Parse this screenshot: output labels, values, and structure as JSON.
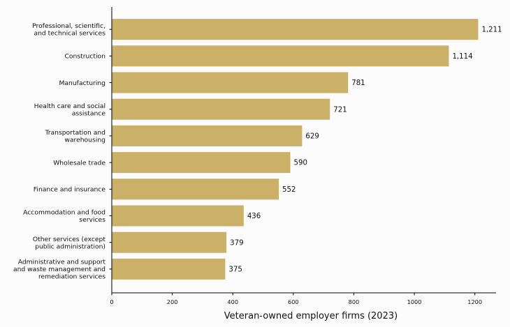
{
  "chart_data": {
    "type": "bar",
    "orientation": "horizontal",
    "xlabel": "Veteran-owned employer firms (2023)",
    "ylabel": "",
    "title": "",
    "xlim": [
      0,
      1270
    ],
    "xticks": [
      "0",
      "200",
      "400",
      "600",
      "800",
      "1000",
      "1200"
    ],
    "categories": [
      [
        "Professional, scientific,",
        "and technical services"
      ],
      [
        "Construction"
      ],
      [
        "Manufacturing"
      ],
      [
        "Health care and social",
        "assistance"
      ],
      [
        "Transportation and",
        "warehousing"
      ],
      [
        "Wholesale trade"
      ],
      [
        "Finance and insurance"
      ],
      [
        "Accommodation and food",
        "services"
      ],
      [
        "Other services (except",
        "public administration)"
      ],
      [
        "Administrative and support",
        "and waste management and",
        "remediation services"
      ]
    ],
    "values": [
      1211,
      1114,
      781,
      721,
      629,
      590,
      552,
      436,
      379,
      375
    ],
    "value_labels": [
      "1,211",
      "1,114",
      "781",
      "721",
      "629",
      "590",
      "552",
      "436",
      "379",
      "375"
    ],
    "bar_color": "#cbb067",
    "grid": false,
    "legend": "none"
  }
}
